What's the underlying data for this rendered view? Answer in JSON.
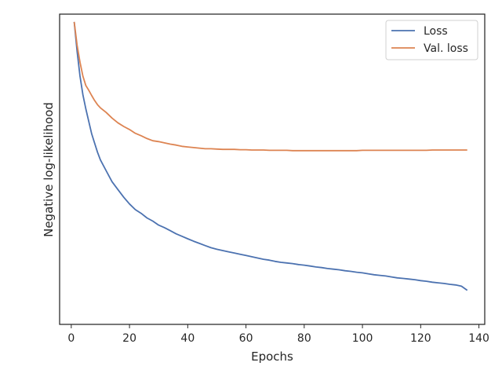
{
  "chart_data": {
    "type": "line",
    "xlabel": "Epochs",
    "ylabel": "Negative log-likelihood",
    "xlim": [
      -4,
      142
    ],
    "ylim": [
      0,
      100
    ],
    "y_ticks_shown": false,
    "x_ticks": [
      0,
      20,
      40,
      60,
      80,
      100,
      120,
      140
    ],
    "x_tick_labels": [
      "0",
      "20",
      "40",
      "60",
      "80",
      "100",
      "120",
      "140"
    ],
    "grid": false,
    "legend_position": "top-right",
    "series": [
      {
        "name": "Loss",
        "color": "#4c72b0",
        "x": [
          1,
          2,
          3,
          4,
          5,
          6,
          7,
          8,
          9,
          10,
          12,
          14,
          16,
          18,
          20,
          22,
          24,
          26,
          28,
          30,
          32,
          34,
          36,
          38,
          40,
          42,
          44,
          46,
          48,
          50,
          52,
          54,
          56,
          58,
          60,
          62,
          64,
          66,
          68,
          70,
          72,
          74,
          76,
          78,
          80,
          82,
          84,
          86,
          88,
          90,
          92,
          94,
          96,
          98,
          100,
          102,
          104,
          106,
          108,
          110,
          112,
          114,
          116,
          118,
          120,
          122,
          124,
          126,
          128,
          130,
          132,
          134,
          136
        ],
        "y": [
          97.5,
          88,
          80,
          74,
          69.5,
          65.5,
          61.5,
          58.5,
          55.5,
          53,
          49.5,
          46,
          43.5,
          41,
          38.8,
          37,
          35.8,
          34.3,
          33.3,
          32,
          31.2,
          30.2,
          29.2,
          28.4,
          27.6,
          26.8,
          26.1,
          25.4,
          24.7,
          24.2,
          23.8,
          23.4,
          23,
          22.6,
          22.2,
          21.8,
          21.4,
          21,
          20.7,
          20.3,
          20,
          19.8,
          19.6,
          19.3,
          19.1,
          18.8,
          18.5,
          18.3,
          18,
          17.8,
          17.6,
          17.3,
          17.1,
          16.8,
          16.6,
          16.3,
          16,
          15.8,
          15.6,
          15.3,
          15,
          14.8,
          14.6,
          14.4,
          14.1,
          13.9,
          13.6,
          13.4,
          13.2,
          12.9,
          12.7,
          12.3,
          11
        ]
      },
      {
        "name": "Val. loss",
        "color": "#dd8452",
        "x": [
          1,
          2,
          3,
          4,
          5,
          6,
          7,
          8,
          9,
          10,
          12,
          14,
          16,
          18,
          20,
          22,
          24,
          26,
          28,
          30,
          32,
          34,
          36,
          38,
          40,
          42,
          44,
          46,
          48,
          50,
          52,
          54,
          56,
          58,
          60,
          62,
          64,
          66,
          68,
          70,
          72,
          74,
          76,
          78,
          80,
          82,
          84,
          86,
          88,
          90,
          92,
          94,
          96,
          98,
          100,
          102,
          104,
          106,
          108,
          110,
          112,
          114,
          116,
          118,
          120,
          122,
          124,
          126,
          128,
          130,
          132,
          134,
          136
        ],
        "y": [
          97.5,
          90,
          84.5,
          80,
          77,
          75.5,
          73.8,
          72.2,
          70.8,
          69.8,
          68.3,
          66.5,
          65,
          63.8,
          62.8,
          61.6,
          60.8,
          59.9,
          59.2,
          58.9,
          58.5,
          58.1,
          57.8,
          57.4,
          57.2,
          57,
          56.8,
          56.6,
          56.6,
          56.5,
          56.4,
          56.4,
          56.4,
          56.3,
          56.3,
          56.2,
          56.2,
          56.2,
          56.1,
          56.1,
          56.1,
          56.1,
          56,
          56,
          56,
          56,
          56,
          56,
          56,
          56,
          56,
          56,
          56,
          56,
          56.1,
          56.1,
          56.1,
          56.1,
          56.1,
          56.1,
          56.1,
          56.1,
          56.1,
          56.1,
          56.1,
          56.1,
          56.2,
          56.2,
          56.2,
          56.2,
          56.2,
          56.2,
          56.2
        ]
      }
    ]
  }
}
